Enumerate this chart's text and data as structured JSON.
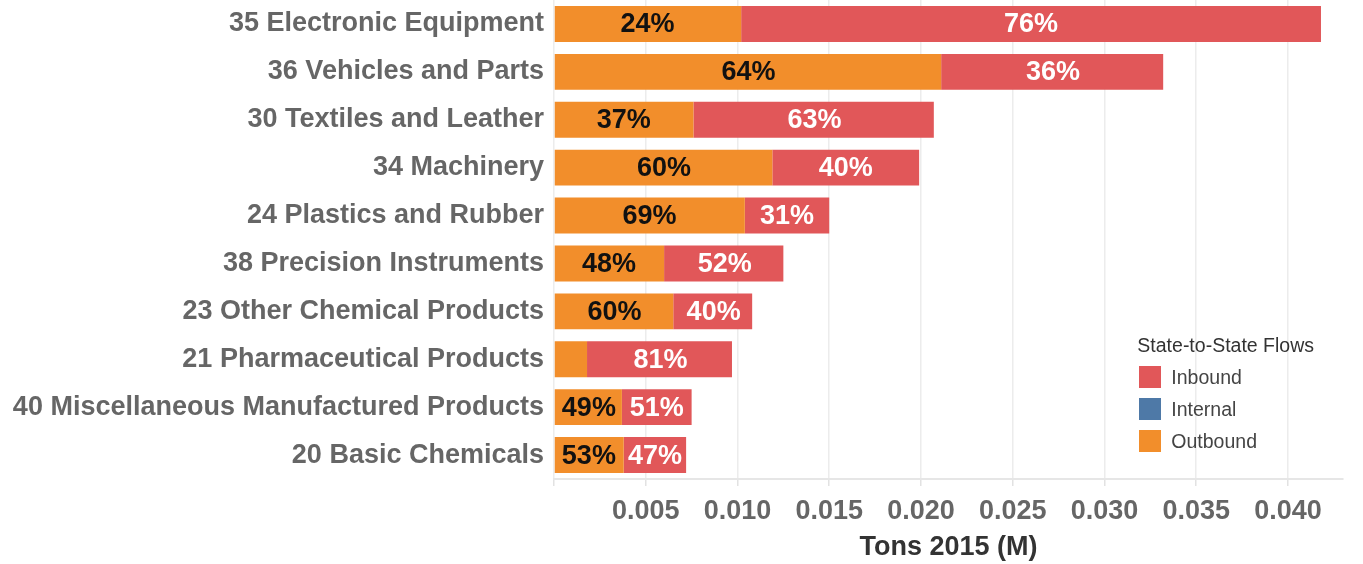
{
  "chart_data": {
    "type": "bar",
    "orientation": "horizontal",
    "stacked": true,
    "categories": [
      "35 Electronic Equipment",
      "36 Vehicles and Parts",
      "30 Textiles and Leather",
      "34 Machinery",
      "24 Plastics and Rubber",
      "38 Precision Instruments",
      "23 Other Chemical Products",
      "21 Pharmaceutical Products",
      "40 Miscellaneous Manufactured Products",
      "20 Basic Chemicals"
    ],
    "series": [
      {
        "name": "Outbound",
        "color": "#f28e2b",
        "values": [
          0.0102,
          0.0211,
          0.0076,
          0.0119,
          0.0104,
          0.006,
          0.0065,
          0.0018,
          0.0037,
          0.0038
        ]
      },
      {
        "name": "Internal",
        "color": "#4e79a7",
        "values": [
          null,
          null,
          null,
          null,
          null,
          null,
          null,
          null,
          null,
          null
        ]
      },
      {
        "name": "Inbound",
        "color": "#e15759",
        "values": [
          0.0316,
          0.0121,
          0.0131,
          0.008,
          0.0046,
          0.0065,
          0.0043,
          0.0079,
          0.0038,
          0.0034
        ]
      }
    ],
    "annotations": [
      {
        "text": "24%",
        "x": 0.0051,
        "y": "35 Electronic Equipment"
      },
      {
        "text": "76%",
        "x": 0.026,
        "y": "35 Electronic Equipment"
      },
      {
        "text": "64%",
        "x": 0.0106,
        "y": "36 Vehicles and Parts"
      },
      {
        "text": "36%",
        "x": 0.0272,
        "y": "36 Vehicles and Parts"
      },
      {
        "text": "37%",
        "x": 0.0038,
        "y": "30 Textiles and Leather"
      },
      {
        "text": "63%",
        "x": 0.0142,
        "y": "30 Textiles and Leather"
      },
      {
        "text": "60%",
        "x": 0.006,
        "y": "34 Machinery"
      },
      {
        "text": "40%",
        "x": 0.0159,
        "y": "34 Machinery"
      },
      {
        "text": "69%",
        "x": 0.0052,
        "y": "24 Plastics and Rubber"
      },
      {
        "text": "31%",
        "x": 0.0127,
        "y": "24 Plastics and Rubber"
      },
      {
        "text": "48%",
        "x": 0.003,
        "y": "38 Precision Instruments"
      },
      {
        "text": "52%",
        "x": 0.0093,
        "y": "38 Precision Instruments"
      },
      {
        "text": "60%",
        "x": 0.0033,
        "y": "23 Other Chemical Products"
      },
      {
        "text": "40%",
        "x": 0.0087,
        "y": "23 Other Chemical Products"
      },
      {
        "text": "81%",
        "x": 0.0058,
        "y": "21 Pharmaceutical Products"
      },
      {
        "text": "49%",
        "x": 0.0019,
        "y": "40 Miscellaneous Manufactured Products"
      },
      {
        "text": "51%",
        "x": 0.0056,
        "y": "40 Miscellaneous Manufactured Products"
      },
      {
        "text": "53%",
        "x": 0.0019,
        "y": "20 Basic Chemicals"
      },
      {
        "text": "47%",
        "x": 0.0055,
        "y": "20 Basic Chemicals"
      }
    ],
    "xlabel": "Tons 2015 (M)",
    "xlim": [
      0,
      0.043
    ],
    "xticks": [
      {
        "value": 0,
        "label": null
      },
      0.005,
      {
        "value": 0.01,
        "label": "0.010"
      },
      0.015,
      {
        "value": 0.02,
        "label": "0.020"
      },
      0.025,
      {
        "value": 0.03,
        "label": "0.030"
      },
      0.035,
      {
        "value": 0.04,
        "label": "0.040"
      }
    ],
    "grid": "x",
    "legend": "bottom right",
    "legend_title": "State-to-State Flows"
  }
}
